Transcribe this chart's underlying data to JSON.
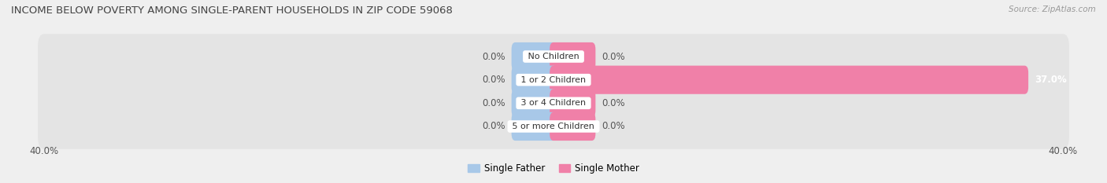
{
  "title": "INCOME BELOW POVERTY AMONG SINGLE-PARENT HOUSEHOLDS IN ZIP CODE 59068",
  "source": "Source: ZipAtlas.com",
  "categories": [
    "No Children",
    "1 or 2 Children",
    "3 or 4 Children",
    "5 or more Children"
  ],
  "single_father": [
    0.0,
    0.0,
    0.0,
    0.0
  ],
  "single_mother": [
    0.0,
    37.0,
    0.0,
    0.0
  ],
  "xlim_val": 40,
  "xtick_labels": [
    "40.0%",
    "40.0%"
  ],
  "father_color": "#a8c8e8",
  "mother_color": "#f080a8",
  "stub_size": 3.0,
  "bar_height": 0.62,
  "bg_color": "#efefef",
  "row_bg_color": "#e4e4e4",
  "title_fontsize": 9.5,
  "label_fontsize": 8.5,
  "source_fontsize": 7.5,
  "legend_fontsize": 8.5
}
